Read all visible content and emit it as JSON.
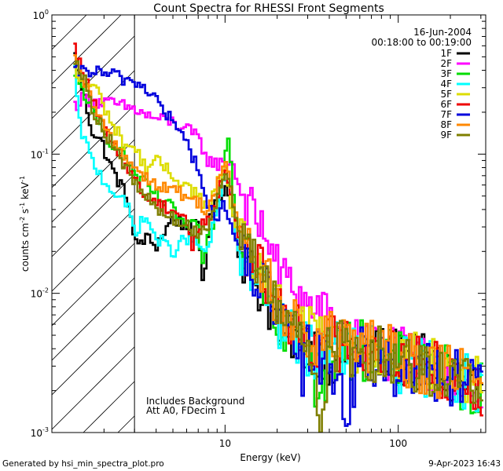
{
  "chart_data": {
    "type": "line",
    "title": "Count Spectra for RHESSI Front Segments",
    "xlabel": "Energy (keV)",
    "ylabel": "counts cm-2 s-1 keV-1",
    "ylabel_parts": {
      "a": "counts cm",
      "b": "-2",
      "c": " s",
      "d": "-1",
      "e": " keV",
      "f": "-1"
    },
    "xscale": "log",
    "yscale": "log",
    "xlim": [
      1.0,
      320
    ],
    "ylim": [
      0.001,
      1.0
    ],
    "x_ticks": [
      {
        "value": 10,
        "label": "10"
      },
      {
        "value": 100,
        "label": "100"
      }
    ],
    "y_ticks": [
      {
        "value": 1.0,
        "mant": "10",
        "exp": "0"
      },
      {
        "value": 0.1,
        "mant": "10",
        "exp": "-1"
      },
      {
        "value": 0.01,
        "mant": "10",
        "exp": "-2"
      },
      {
        "value": 0.001,
        "mant": "10",
        "exp": "-3"
      }
    ],
    "shaded_region": {
      "x_range": [
        1.0,
        3.0
      ],
      "style": "diagonal-hatch"
    },
    "date": "16-Jun-2004",
    "time_range": "00:18:00 to 00:19:00",
    "annotations": [
      "Includes Background",
      "Att A0, FDecim 1"
    ],
    "series": [
      {
        "name": "1F",
        "color": "#000000",
        "pts": [
          [
            1.33,
            0.55
          ],
          [
            1.45,
            0.36
          ],
          [
            1.7,
            0.15
          ],
          [
            1.95,
            0.12
          ],
          [
            2.2,
            0.08
          ],
          [
            2.5,
            0.06
          ],
          [
            2.8,
            0.045
          ],
          [
            3.0,
            0.022
          ],
          [
            3.5,
            0.025
          ],
          [
            4.0,
            0.022
          ],
          [
            5.0,
            0.035
          ],
          [
            6.0,
            0.03
          ],
          [
            7.0,
            0.03
          ],
          [
            7.5,
            0.011
          ],
          [
            8.0,
            0.03
          ],
          [
            9.0,
            0.045
          ],
          [
            10.0,
            0.06
          ],
          [
            11.0,
            0.04
          ],
          [
            12.0,
            0.02
          ],
          [
            14.0,
            0.015
          ],
          [
            16.0,
            0.01
          ],
          [
            18.0,
            0.008
          ],
          [
            20.0,
            0.006
          ],
          [
            22.0,
            0.0045
          ],
          [
            25.0,
            0.005
          ],
          [
            30.0,
            0.004
          ],
          [
            35.0,
            0.0042
          ],
          [
            40.0,
            0.0035
          ],
          [
            50.0,
            0.0038
          ],
          [
            60.0,
            0.004
          ],
          [
            80.0,
            0.0035
          ],
          [
            100.0,
            0.0035
          ],
          [
            130.0,
            0.0032
          ],
          [
            160.0,
            0.0028
          ],
          [
            200.0,
            0.0025
          ],
          [
            250.0,
            0.0023
          ],
          [
            300.0,
            0.0022
          ]
        ]
      },
      {
        "name": "2F",
        "color": "#ff00ff",
        "pts": [
          [
            1.33,
            0.22
          ],
          [
            1.5,
            0.25
          ],
          [
            1.8,
            0.24
          ],
          [
            2.2,
            0.23
          ],
          [
            2.6,
            0.22
          ],
          [
            3.0,
            0.21
          ],
          [
            3.5,
            0.19
          ],
          [
            4.0,
            0.18
          ],
          [
            5.0,
            0.17
          ],
          [
            6.0,
            0.15
          ],
          [
            7.0,
            0.13
          ],
          [
            8.0,
            0.09
          ],
          [
            9.0,
            0.085
          ],
          [
            10.0,
            0.085
          ],
          [
            11.0,
            0.09
          ],
          [
            12.0,
            0.06
          ],
          [
            14.0,
            0.04
          ],
          [
            16.0,
            0.03
          ],
          [
            18.0,
            0.025
          ],
          [
            20.0,
            0.015
          ],
          [
            25.0,
            0.011
          ],
          [
            30.0,
            0.008
          ],
          [
            40.0,
            0.006
          ],
          [
            50.0,
            0.005
          ],
          [
            60.0,
            0.004
          ],
          [
            80.0,
            0.004
          ],
          [
            100.0,
            0.0035
          ],
          [
            150.0,
            0.003
          ],
          [
            200.0,
            0.0025
          ],
          [
            300.0,
            0.002
          ]
        ]
      },
      {
        "name": "3F",
        "color": "#00dd00",
        "pts": [
          [
            1.33,
            0.35
          ],
          [
            1.5,
            0.3
          ],
          [
            1.7,
            0.2
          ],
          [
            2.0,
            0.14
          ],
          [
            2.4,
            0.11
          ],
          [
            2.8,
            0.09
          ],
          [
            3.0,
            0.07
          ],
          [
            3.5,
            0.06
          ],
          [
            4.0,
            0.05
          ],
          [
            5.0,
            0.04
          ],
          [
            6.0,
            0.03
          ],
          [
            7.0,
            0.03
          ],
          [
            7.5,
            0.014
          ],
          [
            8.0,
            0.025
          ],
          [
            9.0,
            0.04
          ],
          [
            10.0,
            0.09
          ],
          [
            10.5,
            0.15
          ],
          [
            11.0,
            0.06
          ],
          [
            12.0,
            0.025
          ],
          [
            14.0,
            0.02
          ],
          [
            18.0,
            0.01
          ],
          [
            20.0,
            0.006
          ],
          [
            25.0,
            0.005
          ],
          [
            30.0,
            0.004
          ],
          [
            35.0,
            0.0014
          ],
          [
            40.0,
            0.0035
          ],
          [
            60.0,
            0.004
          ],
          [
            80.0,
            0.0035
          ],
          [
            100.0,
            0.0032
          ],
          [
            150.0,
            0.003
          ],
          [
            200.0,
            0.0025
          ],
          [
            300.0,
            0.002
          ]
        ]
      },
      {
        "name": "4F",
        "color": "#00ffff",
        "pts": [
          [
            1.33,
            0.5
          ],
          [
            1.45,
            0.16
          ],
          [
            1.7,
            0.09
          ],
          [
            2.0,
            0.065
          ],
          [
            2.4,
            0.05
          ],
          [
            2.8,
            0.04
          ],
          [
            3.0,
            0.028
          ],
          [
            3.5,
            0.035
          ],
          [
            4.0,
            0.025
          ],
          [
            5.0,
            0.02
          ],
          [
            6.0,
            0.025
          ],
          [
            7.0,
            0.022
          ],
          [
            8.0,
            0.02
          ],
          [
            9.0,
            0.04
          ],
          [
            10.0,
            0.07
          ],
          [
            11.0,
            0.045
          ],
          [
            12.0,
            0.02
          ],
          [
            14.0,
            0.015
          ],
          [
            18.0,
            0.01
          ],
          [
            20.0,
            0.006
          ],
          [
            25.0,
            0.005
          ],
          [
            30.0,
            0.004
          ],
          [
            40.0,
            0.004
          ],
          [
            60.0,
            0.004
          ],
          [
            80.0,
            0.0035
          ],
          [
            100.0,
            0.003
          ],
          [
            150.0,
            0.003
          ],
          [
            200.0,
            0.0025
          ],
          [
            300.0,
            0.0022
          ]
        ]
      },
      {
        "name": "5F",
        "color": "#dddd00",
        "pts": [
          [
            1.33,
            0.4
          ],
          [
            1.5,
            0.32
          ],
          [
            1.8,
            0.3
          ],
          [
            2.2,
            0.17
          ],
          [
            2.6,
            0.12
          ],
          [
            3.0,
            0.11
          ],
          [
            3.5,
            0.08
          ],
          [
            4.0,
            0.09
          ],
          [
            5.0,
            0.07
          ],
          [
            6.0,
            0.06
          ],
          [
            7.0,
            0.05
          ],
          [
            8.0,
            0.04
          ],
          [
            9.0,
            0.06
          ],
          [
            10.0,
            0.08
          ],
          [
            11.0,
            0.04
          ],
          [
            12.0,
            0.025
          ],
          [
            14.0,
            0.018
          ],
          [
            18.0,
            0.012
          ],
          [
            20.0,
            0.008
          ],
          [
            25.0,
            0.006
          ],
          [
            30.0,
            0.005
          ],
          [
            40.0,
            0.0045
          ],
          [
            60.0,
            0.004
          ],
          [
            80.0,
            0.004
          ],
          [
            100.0,
            0.0035
          ],
          [
            150.0,
            0.003
          ],
          [
            200.0,
            0.0027
          ],
          [
            300.0,
            0.0022
          ]
        ]
      },
      {
        "name": "6F",
        "color": "#ee0000",
        "pts": [
          [
            1.33,
            0.6
          ],
          [
            1.5,
            0.4
          ],
          [
            1.7,
            0.25
          ],
          [
            2.0,
            0.15
          ],
          [
            2.4,
            0.1
          ],
          [
            2.8,
            0.08
          ],
          [
            3.0,
            0.065
          ],
          [
            3.5,
            0.05
          ],
          [
            4.0,
            0.045
          ],
          [
            5.0,
            0.04
          ],
          [
            6.0,
            0.035
          ],
          [
            6.5,
            0.02
          ],
          [
            7.0,
            0.03
          ],
          [
            8.0,
            0.035
          ],
          [
            9.0,
            0.045
          ],
          [
            10.0,
            0.08
          ],
          [
            11.0,
            0.05
          ],
          [
            12.0,
            0.025
          ],
          [
            14.0,
            0.018
          ],
          [
            18.0,
            0.012
          ],
          [
            20.0,
            0.008
          ],
          [
            25.0,
            0.006
          ],
          [
            30.0,
            0.005
          ],
          [
            40.0,
            0.0045
          ],
          [
            60.0,
            0.004
          ],
          [
            80.0,
            0.004
          ],
          [
            100.0,
            0.0035
          ],
          [
            150.0,
            0.003
          ],
          [
            200.0,
            0.0027
          ],
          [
            300.0,
            0.002
          ]
        ]
      },
      {
        "name": "7F",
        "color": "#0000dd",
        "pts": [
          [
            1.33,
            0.38
          ],
          [
            1.6,
            0.4
          ],
          [
            2.0,
            0.38
          ],
          [
            2.4,
            0.36
          ],
          [
            2.8,
            0.34
          ],
          [
            3.0,
            0.33
          ],
          [
            3.5,
            0.3
          ],
          [
            4.0,
            0.25
          ],
          [
            4.5,
            0.2
          ],
          [
            5.0,
            0.17
          ],
          [
            6.0,
            0.12
          ],
          [
            7.0,
            0.08
          ],
          [
            8.0,
            0.04
          ],
          [
            9.0,
            0.035
          ],
          [
            10.0,
            0.045
          ],
          [
            11.0,
            0.03
          ],
          [
            12.0,
            0.02
          ],
          [
            14.0,
            0.015
          ],
          [
            18.0,
            0.01
          ],
          [
            20.0,
            0.006
          ],
          [
            25.0,
            0.005
          ],
          [
            28.0,
            0.0025
          ],
          [
            30.0,
            0.004
          ],
          [
            40.0,
            0.0035
          ],
          [
            50.0,
            0.0015
          ],
          [
            60.0,
            0.0035
          ],
          [
            80.0,
            0.003
          ],
          [
            100.0,
            0.003
          ],
          [
            150.0,
            0.0028
          ],
          [
            200.0,
            0.0025
          ],
          [
            300.0,
            0.002
          ]
        ]
      },
      {
        "name": "8F",
        "color": "#ff8800",
        "pts": [
          [
            1.33,
            0.48
          ],
          [
            1.5,
            0.35
          ],
          [
            1.8,
            0.2
          ],
          [
            2.2,
            0.13
          ],
          [
            2.6,
            0.1
          ],
          [
            3.0,
            0.08
          ],
          [
            3.5,
            0.07
          ],
          [
            4.0,
            0.06
          ],
          [
            5.0,
            0.055
          ],
          [
            6.0,
            0.05
          ],
          [
            7.0,
            0.045
          ],
          [
            8.0,
            0.04
          ],
          [
            9.0,
            0.06
          ],
          [
            10.0,
            0.09
          ],
          [
            11.0,
            0.05
          ],
          [
            12.0,
            0.03
          ],
          [
            14.0,
            0.02
          ],
          [
            18.0,
            0.012
          ],
          [
            20.0,
            0.008
          ],
          [
            25.0,
            0.006
          ],
          [
            30.0,
            0.005
          ],
          [
            40.0,
            0.0045
          ],
          [
            60.0,
            0.004
          ],
          [
            80.0,
            0.004
          ],
          [
            100.0,
            0.0035
          ],
          [
            150.0,
            0.003
          ],
          [
            200.0,
            0.0027
          ],
          [
            300.0,
            0.0022
          ]
        ]
      },
      {
        "name": "9F",
        "color": "#7f7f00",
        "pts": [
          [
            1.33,
            0.52
          ],
          [
            1.5,
            0.38
          ],
          [
            1.7,
            0.22
          ],
          [
            2.0,
            0.15
          ],
          [
            2.4,
            0.1
          ],
          [
            2.8,
            0.075
          ],
          [
            3.0,
            0.06
          ],
          [
            3.5,
            0.05
          ],
          [
            4.0,
            0.04
          ],
          [
            5.0,
            0.035
          ],
          [
            6.0,
            0.03
          ],
          [
            7.0,
            0.028
          ],
          [
            8.0,
            0.03
          ],
          [
            9.0,
            0.05
          ],
          [
            10.0,
            0.08
          ],
          [
            11.0,
            0.05
          ],
          [
            12.0,
            0.025
          ],
          [
            14.0,
            0.018
          ],
          [
            18.0,
            0.012
          ],
          [
            20.0,
            0.008
          ],
          [
            25.0,
            0.006
          ],
          [
            30.0,
            0.005
          ],
          [
            35.0,
            0.0012
          ],
          [
            40.0,
            0.004
          ],
          [
            60.0,
            0.004
          ],
          [
            80.0,
            0.0035
          ],
          [
            100.0,
            0.0035
          ],
          [
            150.0,
            0.003
          ],
          [
            200.0,
            0.0025
          ],
          [
            300.0,
            0.0022
          ]
        ]
      }
    ]
  },
  "footer": {
    "generated_by": "Generated by hsi_min_spectra_plot.pro",
    "timestamp": "9-Apr-2023 16:43"
  }
}
